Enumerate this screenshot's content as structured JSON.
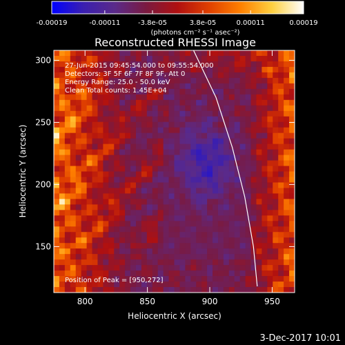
{
  "colorbar": {
    "tick_labels": [
      "-0.00019",
      "-0.00011",
      "-3.8e-05",
      "3.8e-05",
      "0.00011",
      "0.00019"
    ],
    "tick_values": [
      -0.00019,
      -0.00011,
      -3.8e-05,
      3.8e-05,
      0.00011,
      0.00019
    ],
    "range": [
      -0.00019,
      0.00019
    ],
    "unit_label": "(photons cm⁻² s⁻¹ asec⁻²)",
    "colors": [
      "#0000ff",
      "#3a1fb0",
      "#5a2a8a",
      "#7a1a40",
      "#b01010",
      "#e04000",
      "#ff8000",
      "#ffd040",
      "#ffffff"
    ]
  },
  "chart_data": {
    "type": "heatmap",
    "title": "Reconstructed RHESSI Image",
    "xlabel": "Heliocentric X (arcsec)",
    "ylabel": "Heliocentric Y (arcsec)",
    "xlim": [
      775,
      968
    ],
    "ylim": [
      113,
      308
    ],
    "x_ticks": [
      800,
      850,
      900,
      950
    ],
    "y_ticks": [
      150,
      200,
      250,
      300
    ],
    "annotations": [
      "27-Jun-2015 09:45:54.000 to 09:55:54.000",
      "Detectors: 3F 5F 6F 7F 8F 9F, Att 0",
      "Energy Range: 25.0 - 50.0 keV",
      "Clean    Total counts: 1.45E+04"
    ],
    "peak_label": "Position of Peak = [950,272]",
    "peak": [
      950,
      272
    ],
    "limb_curve": [
      [
        887,
        308
      ],
      [
        905,
        270
      ],
      [
        918,
        230
      ],
      [
        928,
        190
      ],
      [
        935,
        150
      ],
      [
        938,
        118
      ]
    ]
  },
  "footer": {
    "date": "3-Dec-2017 10:01"
  }
}
